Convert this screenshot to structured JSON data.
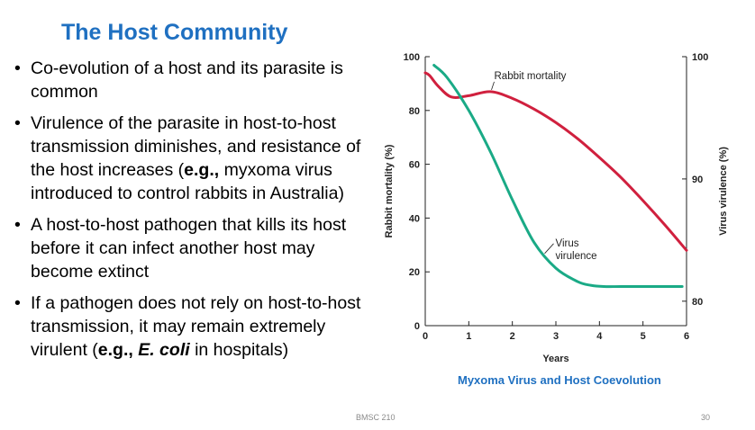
{
  "slide": {
    "title": "The Host Community",
    "footer_course": "BMSC 210",
    "page_number": "30"
  },
  "bullets": [
    {
      "segments": [
        {
          "text": "Co-evolution of a host and its parasite is common",
          "bold": false,
          "italic": false
        }
      ]
    },
    {
      "segments": [
        {
          "text": "Virulence of the parasite in host-to-host transmission diminishes, and resistance of the host increases (",
          "bold": false,
          "italic": false
        },
        {
          "text": "e.g.,",
          "bold": true,
          "italic": false
        },
        {
          "text": " myxoma virus introduced to control rabbits in Australia)",
          "bold": false,
          "italic": false
        }
      ]
    },
    {
      "segments": [
        {
          "text": "A host-to-host pathogen that kills its host before it can infect another host may become extinct",
          "bold": false,
          "italic": false
        }
      ]
    },
    {
      "segments": [
        {
          "text": "If a pathogen does not rely on host-to-host transmission, it may remain extremely virulent (",
          "bold": false,
          "italic": false
        },
        {
          "text": "e.g., ",
          "bold": true,
          "italic": false
        },
        {
          "text": "E. coli",
          "bold": true,
          "italic": true
        },
        {
          "text": " in hospitals)",
          "bold": false,
          "italic": false
        }
      ]
    }
  ],
  "chart_data": {
    "type": "line",
    "caption": "Myxoma Virus and Host Coevolution",
    "xlabel": "Years",
    "ylabel_left": "Rabbit mortality (%)",
    "ylabel_right": "Virus virulence (%)",
    "xlim": [
      0,
      6
    ],
    "ylim_left": [
      0,
      100
    ],
    "ylim_right": [
      78,
      100
    ],
    "x_ticks": [
      "0",
      "1",
      "2",
      "3",
      "4",
      "5",
      "6"
    ],
    "y_ticks_left": [
      "0",
      "20",
      "40",
      "60",
      "80",
      "100"
    ],
    "y_ticks_right": [
      "80",
      "90",
      "100"
    ],
    "grid": false,
    "series": [
      {
        "name": "Rabbit mortality",
        "axis": "left",
        "color": "#d0203e",
        "x": [
          0.0,
          0.1,
          0.3,
          0.6,
          1.0,
          1.5,
          2.0,
          2.5,
          3.0,
          3.5,
          4.0,
          4.5,
          5.0,
          5.5,
          6.0
        ],
        "y": [
          94,
          93,
          89,
          85,
          85.5,
          87,
          84.5,
          80.5,
          75.5,
          69.5,
          62.5,
          55,
          46.5,
          37.5,
          28
        ]
      },
      {
        "name": "Virus virulence",
        "axis": "right",
        "color": "#1aaa86",
        "x": [
          0.2,
          0.5,
          1.0,
          1.5,
          2.0,
          2.5,
          3.0,
          3.5,
          3.8,
          4.1,
          4.5,
          5.0,
          5.5,
          5.9
        ],
        "y": [
          99.3,
          98.3,
          95.6,
          92.2,
          88.3,
          84.8,
          82.7,
          81.6,
          81.3,
          81.2,
          81.2,
          81.2,
          81.2,
          81.2
        ]
      }
    ],
    "annotations": [
      {
        "text": "Rabbit mortality",
        "series": "Rabbit mortality"
      },
      {
        "text_lines": [
          "Virus",
          "virulence"
        ],
        "series": "Virus virulence"
      }
    ]
  }
}
